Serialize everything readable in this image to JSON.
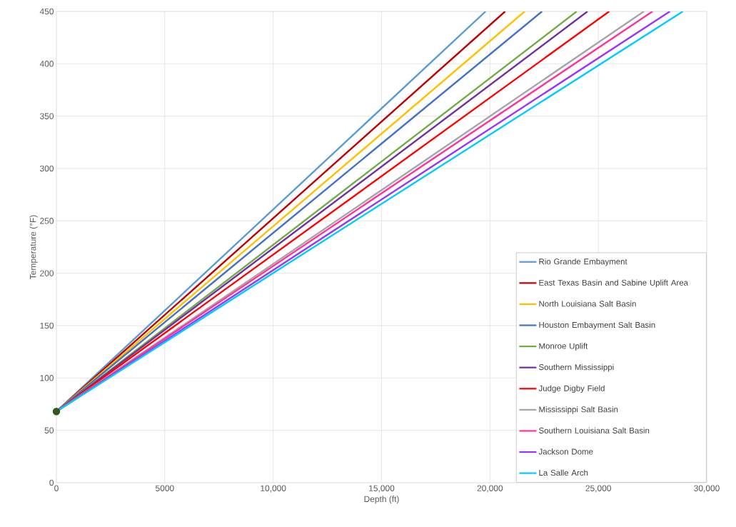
{
  "chart_data": {
    "type": "line",
    "xlabel": "Depth (ft)",
    "ylabel": "Temperature (°F)",
    "xlim": [
      0,
      30000
    ],
    "ylim": [
      0,
      450
    ],
    "xticks": [
      0,
      5000,
      {
        "value": 10000,
        "label": "10,000"
      },
      {
        "value": 15000,
        "label": "15,000"
      },
      {
        "value": 20000,
        "label": "20,000"
      },
      {
        "value": 25000,
        "label": "25,000"
      },
      {
        "value": 30000,
        "label": "30,000"
      }
    ],
    "yticks": [
      0,
      50,
      100,
      150,
      200,
      250,
      300,
      350,
      400,
      450
    ],
    "grid": true,
    "legend": "bottom right",
    "marker": "none",
    "line_style": "solid",
    "series": [
      {
        "name": "Rio Grande Embayment",
        "color": "#5b9bd5",
        "x": [
          0,
          19800
        ],
        "values": [
          68,
          450
        ]
      },
      {
        "name": "East Texas Basin and Sabine Uplift Area",
        "color": "#c00000",
        "x": [
          0,
          20700
        ],
        "values": [
          68,
          450
        ]
      },
      {
        "name": "North Louisiana Salt Basin",
        "color": "#ffc000",
        "x": [
          0,
          21600
        ],
        "values": [
          68,
          450
        ]
      },
      {
        "name": "Houston Embayment Salt Basin",
        "color": "#4472c4",
        "x": [
          0,
          22400
        ],
        "values": [
          68,
          450
        ]
      },
      {
        "name": "Monroe Uplift",
        "color": "#70ad47",
        "x": [
          0,
          24000
        ],
        "values": [
          68,
          450
        ]
      },
      {
        "name": "Southern Mississippi",
        "color": "#7030a0",
        "x": [
          0,
          24500
        ],
        "values": [
          68,
          450
        ]
      },
      {
        "name": "Judge Digby Field",
        "color": "#ff0000",
        "x": [
          0,
          25500
        ],
        "values": [
          68,
          450
        ]
      },
      {
        "name": "Mississippi Salt Basin",
        "color": "#a5a5a5",
        "x": [
          0,
          27100
        ],
        "values": [
          68,
          450
        ]
      },
      {
        "name": "Southern Louisiana Salt Basin",
        "color": "#ff3399",
        "x": [
          0,
          27500
        ],
        "values": [
          68,
          450
        ]
      },
      {
        "name": "Jackson Dome",
        "color": "#9933ff",
        "x": [
          0,
          28300
        ],
        "values": [
          68,
          450
        ]
      },
      {
        "name": "La Salle Arch",
        "color": "#00ccff",
        "x": [
          0,
          28900
        ],
        "values": [
          68,
          450
        ]
      },
      {
        "type": "scatter",
        "marker": "circle",
        "color": "#375623",
        "x": [
          0
        ],
        "values": [
          68
        ]
      }
    ]
  }
}
